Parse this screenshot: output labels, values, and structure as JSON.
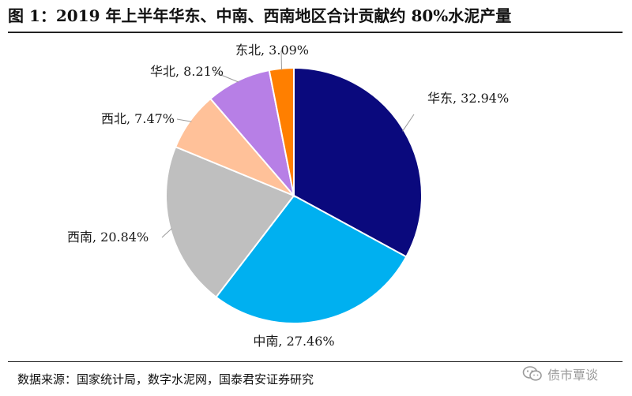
{
  "header": {
    "title": "图 1：2019 年上半年华东、中南、西南地区合计贡献约 80%水泥产量"
  },
  "chart_data": {
    "type": "pie",
    "title": "",
    "start_angle_deg": 0,
    "direction": "clockwise",
    "slices": [
      {
        "name": "华东",
        "value": 32.94,
        "label": "华东, 32.94%",
        "color": "#0A097D"
      },
      {
        "name": "中南",
        "value": 27.46,
        "label": "中南, 27.46%",
        "color": "#00B0F0"
      },
      {
        "name": "西南",
        "value": 20.84,
        "label": "西南, 20.84%",
        "color": "#BFBFBF"
      },
      {
        "name": "西北",
        "value": 7.47,
        "label": "西北, 7.47%",
        "color": "#FFC199"
      },
      {
        "name": "华北",
        "value": 8.21,
        "label": "华北, 8.21%",
        "color": "#B77FE6"
      },
      {
        "name": "东北",
        "value": 3.09,
        "label": "东北, 3.09%",
        "color": "#FF7F00"
      }
    ]
  },
  "footer": {
    "source": "数据来源：国家统计局，数字水泥网，国泰君安证券研究",
    "watermark": "债市覃谈"
  }
}
